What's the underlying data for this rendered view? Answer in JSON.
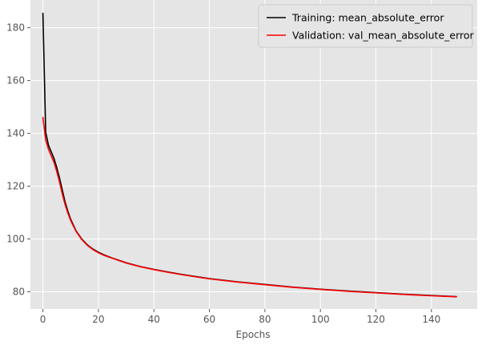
{
  "chart_data": {
    "type": "line",
    "title": "",
    "xlabel": "Epochs",
    "ylabel": "",
    "xlim": [
      -4.5,
      156.5
    ],
    "ylim": [
      73.5,
      190.5
    ],
    "xticks": [
      0,
      20,
      40,
      60,
      80,
      100,
      120,
      140
    ],
    "yticks": [
      80,
      100,
      120,
      140,
      160,
      180
    ],
    "grid": true,
    "legend_position": "top-right",
    "series": [
      {
        "name": "Training: mean_absolute_error",
        "color": "#000000",
        "x": [
          0,
          1,
          2,
          3,
          4,
          5,
          6,
          7,
          8,
          9,
          10,
          12,
          14,
          16,
          18,
          20,
          22,
          25,
          30,
          35,
          40,
          45,
          50,
          60,
          70,
          80,
          90,
          100,
          110,
          120,
          130,
          140,
          149
        ],
        "y": [
          185.5,
          140.5,
          135.5,
          133,
          130.5,
          127,
          123,
          118.5,
          114,
          110.5,
          107.5,
          103,
          100,
          97.8,
          96.2,
          95,
          94,
          92.8,
          91,
          89.6,
          88.5,
          87.5,
          86.6,
          85,
          83.8,
          82.8,
          81.8,
          81,
          80.3,
          79.7,
          79.1,
          78.6,
          78.2
        ]
      },
      {
        "name": "Validation: val_mean_absolute_error",
        "color": "#ff0000",
        "x": [
          0,
          1,
          2,
          3,
          4,
          5,
          6,
          7,
          8,
          9,
          10,
          12,
          14,
          16,
          18,
          20,
          22,
          25,
          30,
          35,
          40,
          45,
          50,
          60,
          70,
          80,
          90,
          100,
          110,
          120,
          130,
          140,
          149
        ],
        "y": [
          146,
          137.5,
          134,
          131.5,
          129,
          125.5,
          121.5,
          117,
          113,
          109.8,
          107,
          102.8,
          99.8,
          97.6,
          96,
          94.8,
          93.8,
          92.7,
          90.9,
          89.5,
          88.4,
          87.4,
          86.5,
          84.9,
          83.7,
          82.7,
          81.7,
          80.9,
          80.2,
          79.6,
          79,
          78.5,
          78.1
        ]
      }
    ]
  }
}
